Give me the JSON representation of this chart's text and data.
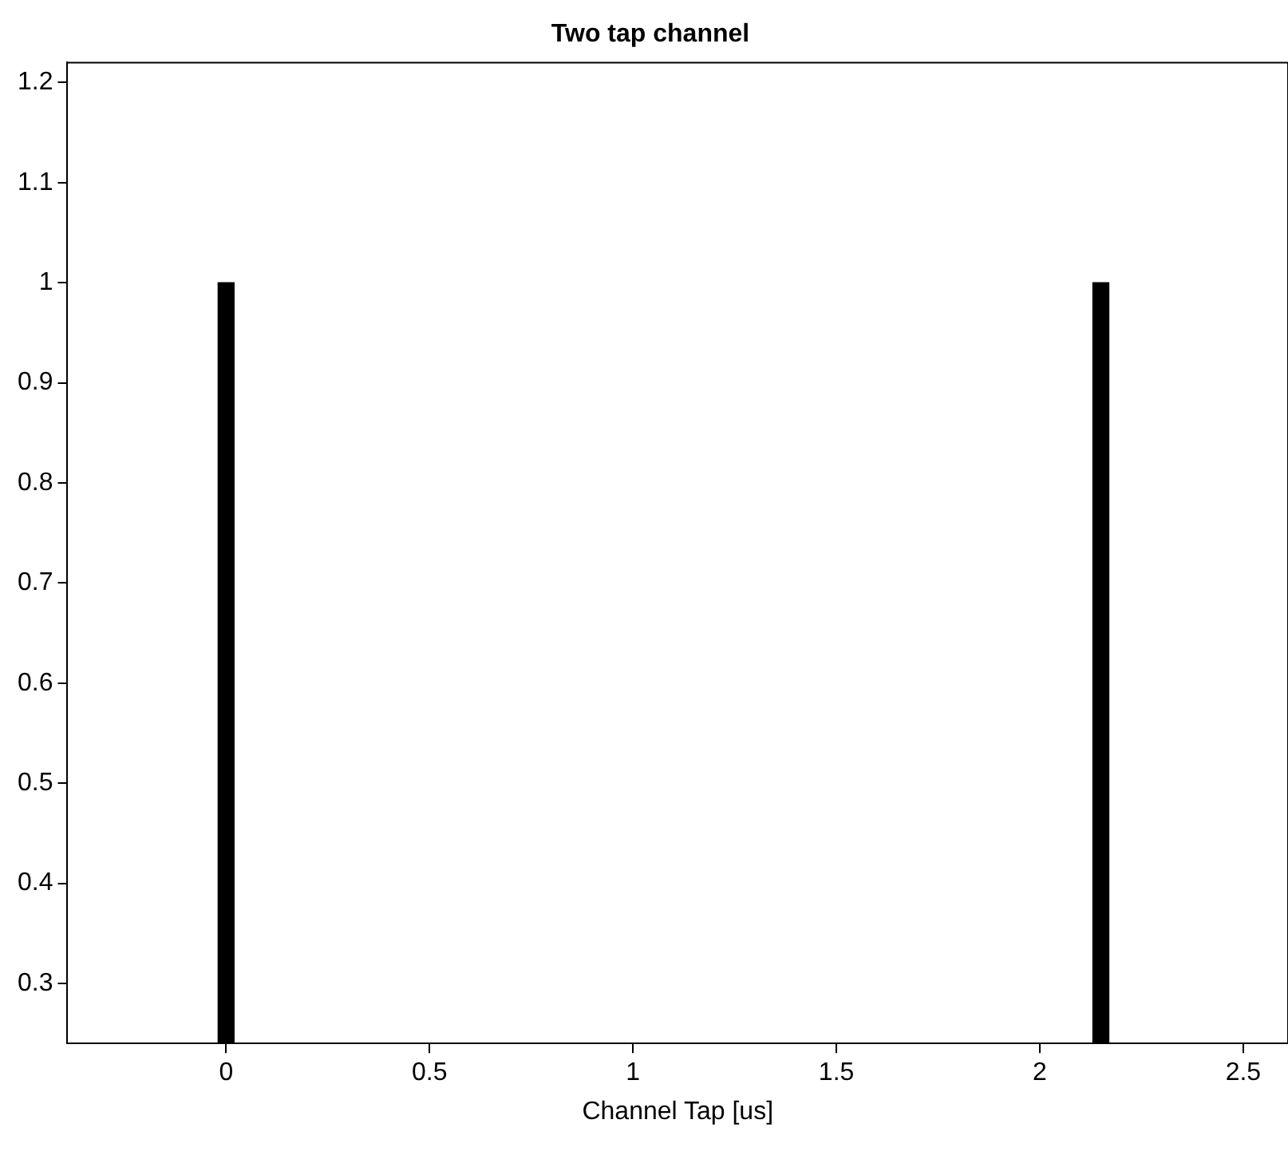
{
  "chart_data": {
    "type": "bar",
    "title": "Two tap channel",
    "xlabel": "Channel Tap [us]",
    "x": [
      0,
      2.15
    ],
    "values": [
      1,
      1
    ],
    "color": "#000000",
    "xlim": [
      -0.39,
      2.61
    ],
    "xticks": [
      0,
      0.5,
      1,
      1.5,
      2,
      2.5
    ],
    "ylim": [
      0.24,
      1.22
    ],
    "yticks": [
      0.3,
      0.4,
      0.5,
      0.6,
      0.7,
      0.8,
      0.9,
      1,
      1.1,
      1.2
    ],
    "grid": false,
    "legend": false
  }
}
